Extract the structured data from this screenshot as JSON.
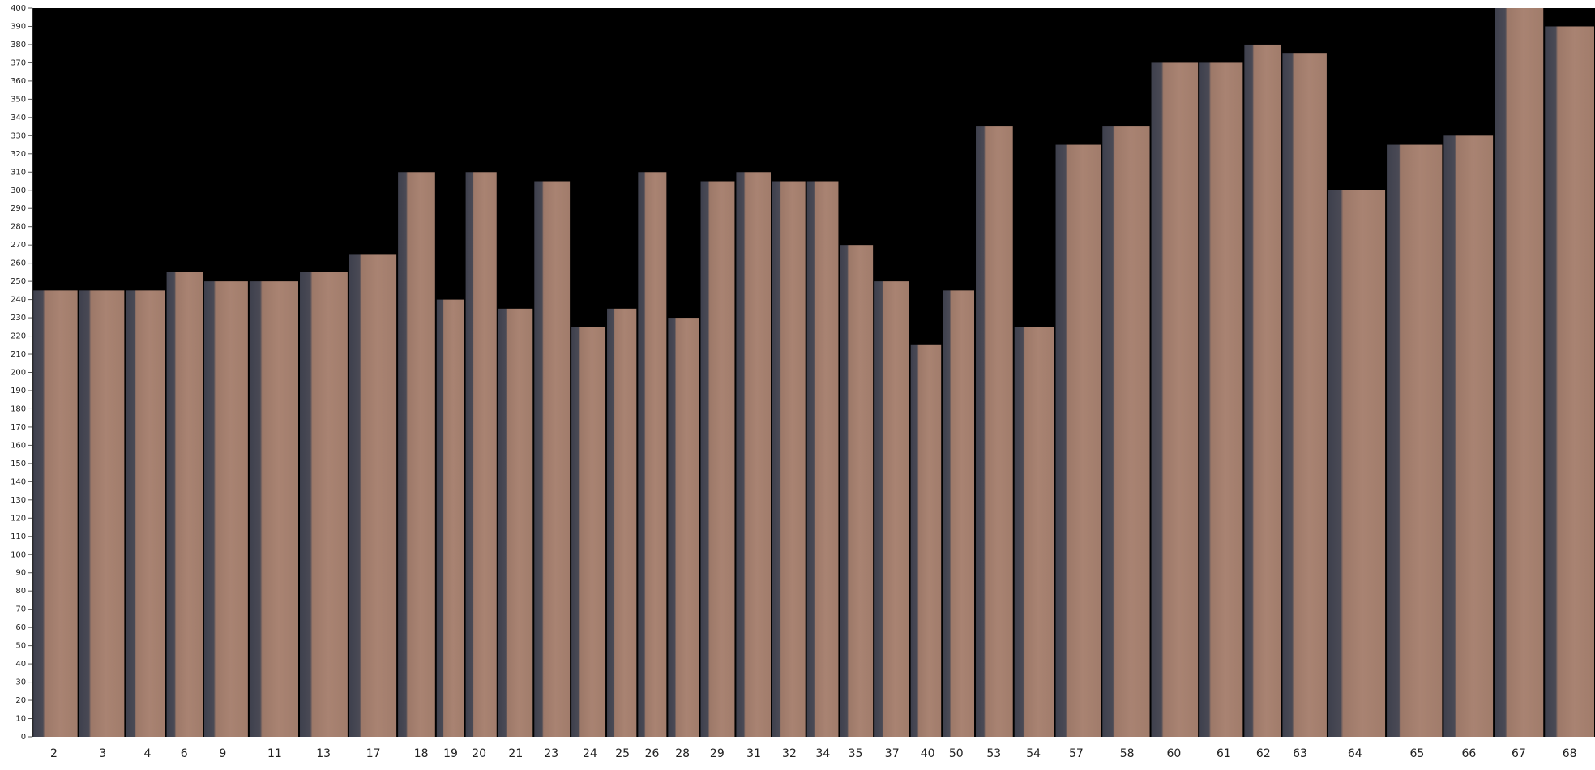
{
  "chart_data": {
    "type": "bar",
    "categories": [
      "2",
      "3",
      "4",
      "6",
      "9",
      "11",
      "13",
      "17",
      "18",
      "19",
      "20",
      "21",
      "23",
      "24",
      "25",
      "26",
      "28",
      "29",
      "31",
      "32",
      "34",
      "35",
      "37",
      "40",
      "50",
      "53",
      "54",
      "57",
      "58",
      "60",
      "61",
      "62",
      "63",
      "64",
      "65",
      "66",
      "67",
      "68"
    ],
    "values": [
      245,
      245,
      245,
      255,
      250,
      250,
      255,
      265,
      310,
      240,
      310,
      235,
      305,
      225,
      235,
      310,
      230,
      305,
      310,
      305,
      305,
      270,
      250,
      215,
      245,
      335,
      225,
      325,
      335,
      370,
      370,
      380,
      375,
      300,
      325,
      330,
      400,
      390
    ],
    "color": "#a88170",
    "ylim": [
      0,
      400
    ],
    "yticks": [
      0,
      10,
      20,
      30,
      40,
      50,
      60,
      70,
      80,
      90,
      100,
      110,
      120,
      130,
      140,
      150,
      160,
      170,
      180,
      190,
      200,
      210,
      220,
      230,
      240,
      250,
      260,
      270,
      280,
      290,
      300,
      310,
      320,
      330,
      340,
      350,
      360,
      370,
      380,
      390,
      400
    ]
  }
}
